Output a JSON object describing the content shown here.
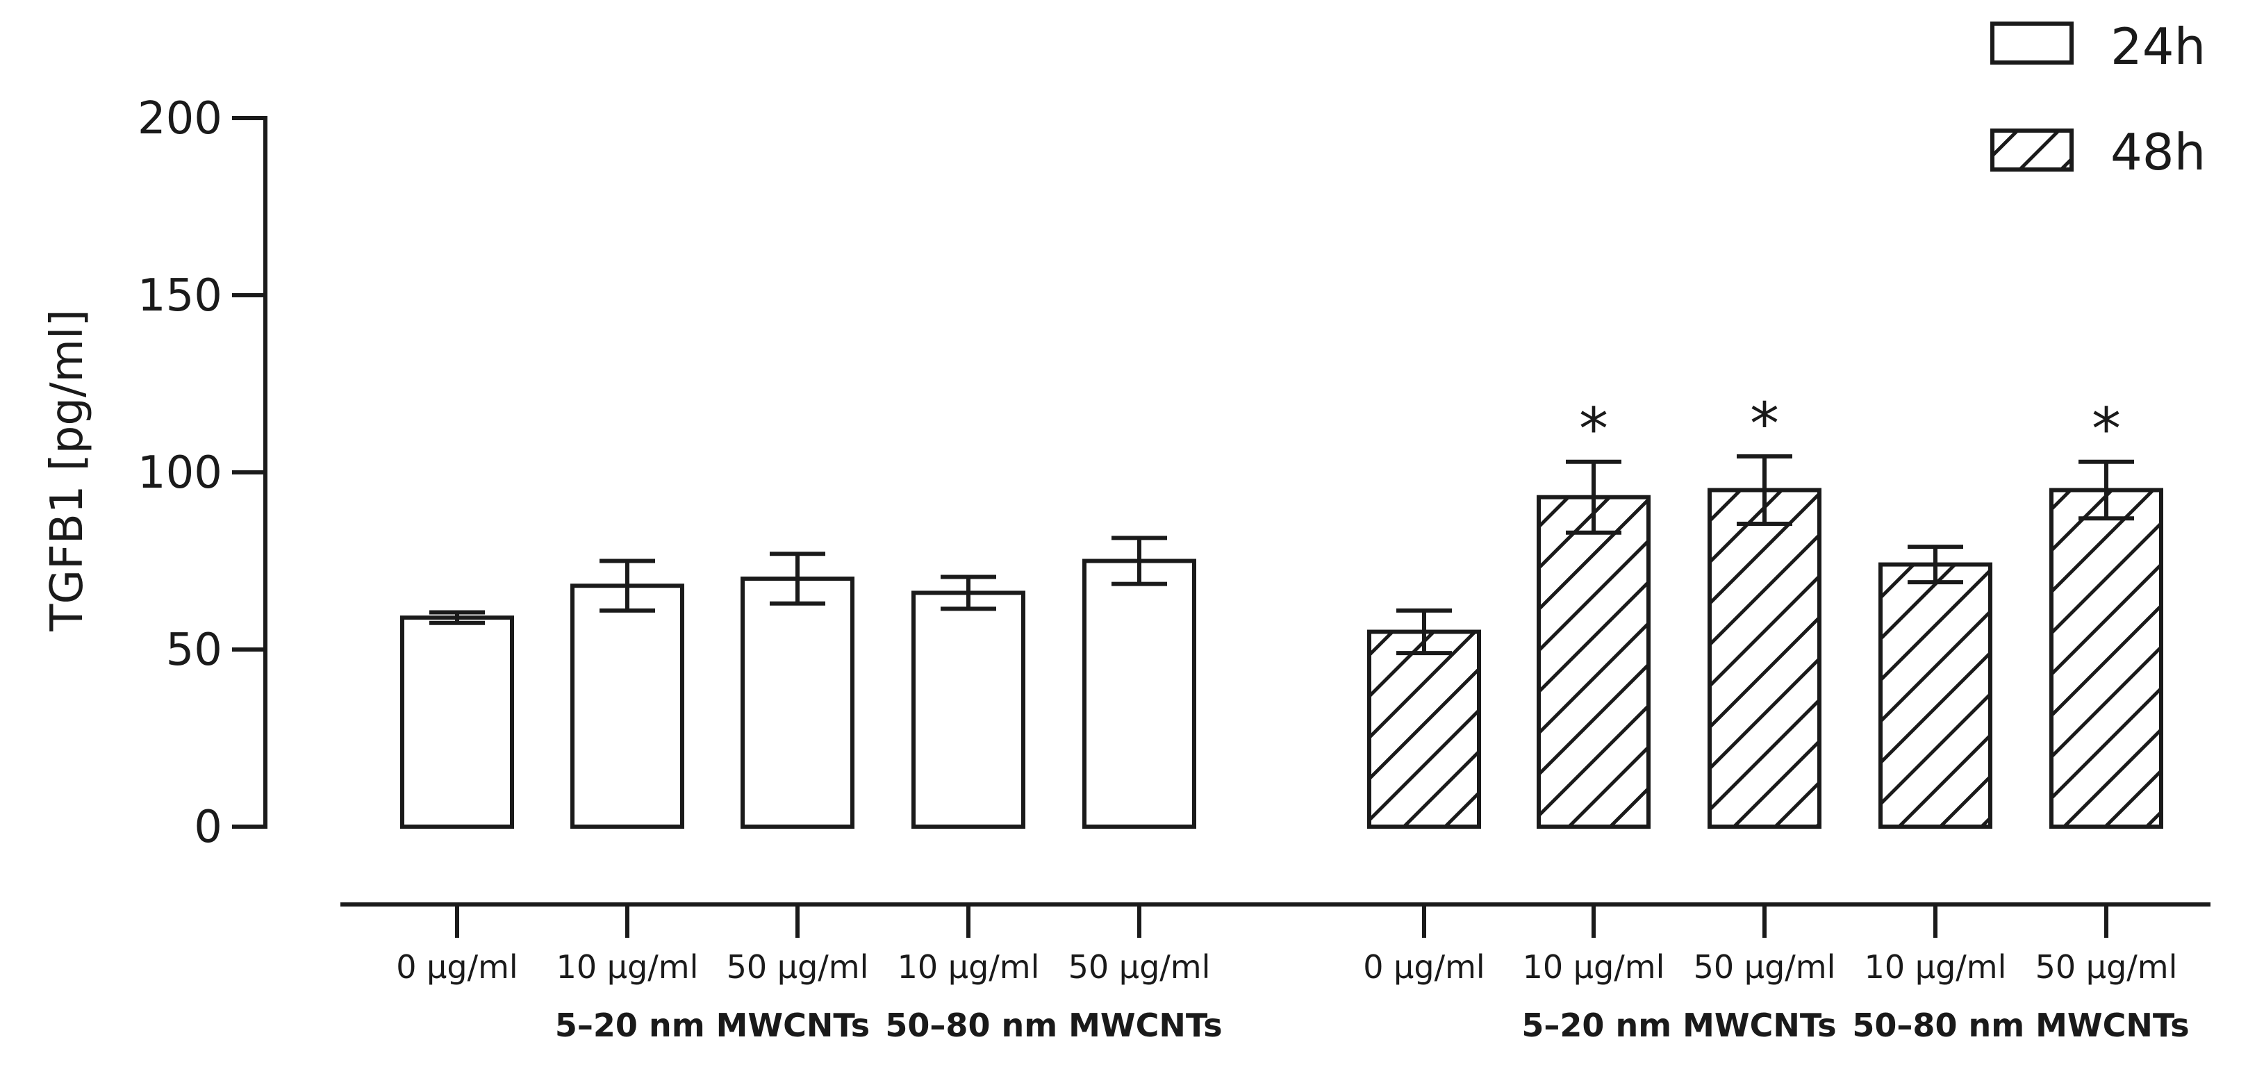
{
  "chart_data": {
    "type": "bar",
    "title": "",
    "ylabel": "TGFB1 [pg/ml]",
    "xlabel": "",
    "ylim": [
      0,
      200
    ],
    "yticks": [
      0,
      50,
      100,
      150,
      200
    ],
    "grid": false,
    "legend": {
      "position": "top-right",
      "entries": [
        {
          "name": "24h",
          "fill": "white"
        },
        {
          "name": "48h",
          "fill": "hatched"
        }
      ]
    },
    "series": [
      {
        "name": "24h",
        "categories": [
          "0 µg/ml",
          "10 µg/ml",
          "50 µg/ml",
          "10 µg/ml",
          "50 µg/ml"
        ],
        "values": [
          59,
          68,
          70,
          66,
          75
        ],
        "errors": [
          1.5,
          7,
          7,
          4.5,
          6.5
        ],
        "significant": [
          false,
          false,
          false,
          false,
          false
        ]
      },
      {
        "name": "48h",
        "categories": [
          "0 µg/ml",
          "10 µg/ml",
          "50 µg/ml",
          "10 µg/ml",
          "50 µg/ml"
        ],
        "values": [
          55,
          93,
          95,
          74,
          95
        ],
        "errors": [
          6,
          10,
          9.5,
          5,
          8
        ],
        "significant": [
          false,
          true,
          true,
          false,
          true
        ]
      }
    ],
    "subgroup_labels": [
      "5–20 nm MWCNTs",
      "50–80 nm MWCNTs"
    ],
    "significance_marker": "*"
  },
  "colors": {
    "ink": "#1a1a1a",
    "background": "#ffffff"
  }
}
